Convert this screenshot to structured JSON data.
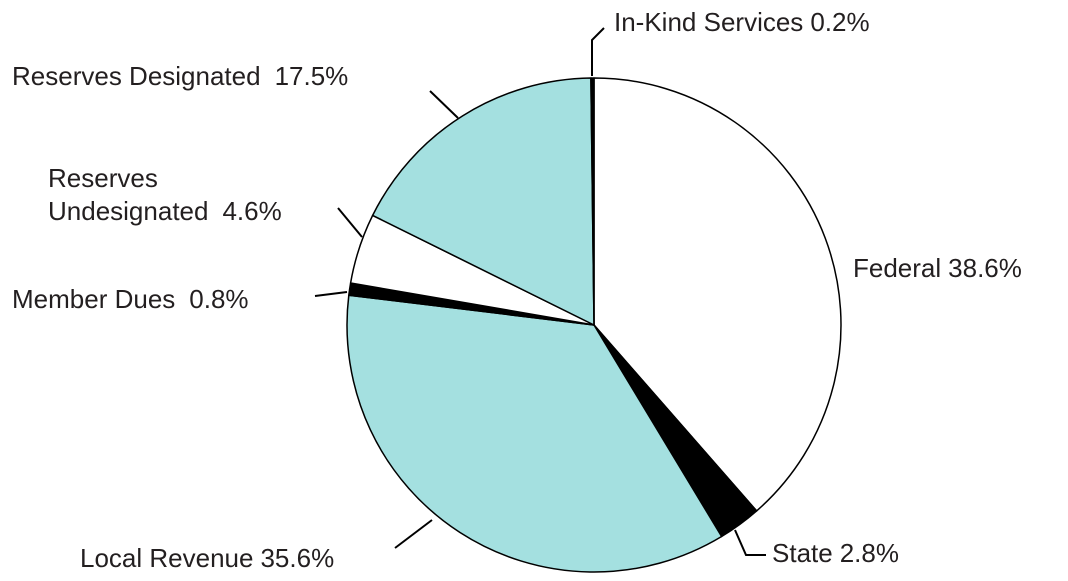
{
  "chart_data": {
    "type": "pie",
    "categories": [
      "Federal",
      "State",
      "Local Revenue",
      "Member Dues",
      "Reserves Undesignated",
      "Reserves Designated",
      "In-Kind Services"
    ],
    "values": [
      38.6,
      2.8,
      35.6,
      0.8,
      4.6,
      17.5,
      0.2
    ],
    "value_labels": [
      "38.6%",
      "2.8%",
      "35.6%",
      "0.8%",
      "4.6%",
      "17.5%",
      "0.2%"
    ],
    "colors": [
      "#ffffff",
      "#000000",
      "#a4e0e0",
      "#000000",
      "#ffffff",
      "#a4e0e0",
      "#000000"
    ]
  }
}
